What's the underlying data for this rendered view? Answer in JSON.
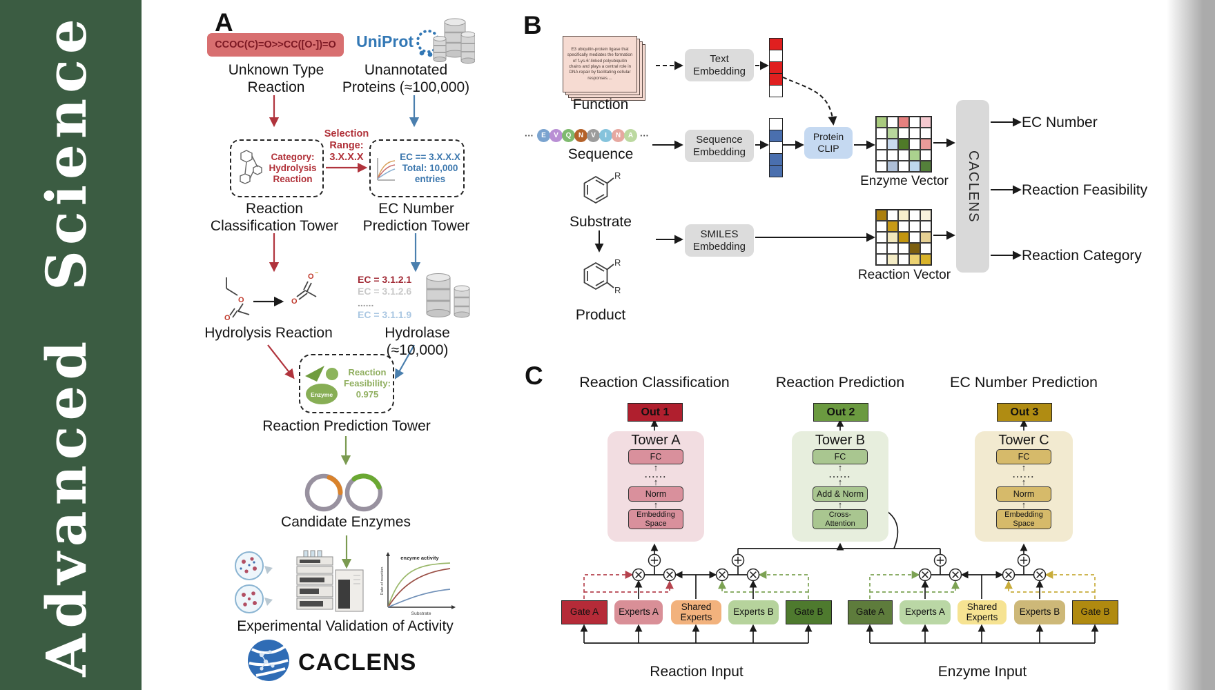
{
  "sidebar": {
    "journal": "Advanced Science",
    "bg": "#3b5c42"
  },
  "panel_a": {
    "label": "A",
    "smiles": "CCOC(C)=O>>CC([O-])=O",
    "smiles_bg": "#d86f70",
    "uniprot": "UniProt",
    "unknown_reaction": "Unknown Type\nReaction",
    "unannotated": "Unannotated\nProteins (≈100,000)",
    "selection": "Selection\nRange:\n3.X.X.X",
    "category_box": "Category:\nHydrolysis\nReaction",
    "ec_box": "EC == 3.X.X.X\nTotal: 10,000\nentries",
    "tower_left": "Reaction\nClassification Tower",
    "tower_right": "EC Number\nPrediction Tower",
    "ec_list": [
      {
        "text": "EC = 3.1.2.1",
        "color": "#a12a35"
      },
      {
        "text": "EC = 3.1.2.6",
        "color": "#c9c9c9"
      },
      {
        "text": "......",
        "color": "#9a9a9a"
      },
      {
        "text": "EC = 3.1.1.9",
        "color": "#aac7e2"
      }
    ],
    "hydrolysis": "Hydrolysis Reaction",
    "hydrolase": "Hydrolase (≈10,000)",
    "enzyme_label": "Enzyme",
    "feasibility": "Reaction\nFeasibility:\n0.975",
    "tower_mid": "Reaction Prediction Tower",
    "candidates": "Candidate Enzymes",
    "graph": {
      "title": "enzyme activity",
      "ylabel": "Rate of reaction",
      "xlabel": "Substrate"
    },
    "validation": "Experimental Validation of Activity",
    "logo": "CACLENS"
  },
  "panel_b": {
    "label": "B",
    "function_card": "E3 ubiquitin-protein ligase that specifically mediates the formation of 'Lys-6'-linked polyubiquitin chains and plays a central role in DNA repair by facilitating cellular responses....",
    "function": "Function",
    "ellipsis": "···",
    "sequence_letters": [
      {
        "ch": "E",
        "color": "#7aa3cf"
      },
      {
        "ch": "V",
        "color": "#b98fd4"
      },
      {
        "ch": "Q",
        "color": "#7fba6f"
      },
      {
        "ch": "N",
        "color": "#b4622a"
      },
      {
        "ch": "V",
        "color": "#9c9c9c"
      },
      {
        "ch": "I",
        "color": "#85c3dc"
      },
      {
        "ch": "N",
        "color": "#e6a8a0"
      },
      {
        "ch": "A",
        "color": "#bcd9a0"
      }
    ],
    "sequence": "Sequence",
    "substrate": "Substrate",
    "product": "Product",
    "text_embedding": "Text\nEmbedding",
    "sequence_embedding": "Sequence\nEmbedding",
    "smiles_embedding": "SMILES\nEmbedding",
    "protein_clip": "Protein\nCLIP",
    "protein_clip_bg": "#c5d9f1",
    "embed_box_bg": "#dcdcdc",
    "text_vector": [
      "#e01f1f",
      "#ffffff",
      "#e01f1f",
      "#e01f1f",
      "#ffffff"
    ],
    "sequence_vector": [
      "#ffffff",
      "#4a6fae",
      "#ffffff",
      "#4a6fae",
      "#4a6fae"
    ],
    "enzyme_vector_label": "Enzyme Vector",
    "reaction_vector_label": "Reaction Vector",
    "enzyme_matrix": [
      "#a9cb7e",
      "#ffffff",
      "#e5807f",
      "#ffffff",
      "#f4c9cf",
      "#ffffff",
      "#b8d79c",
      "#ffffff",
      "#ffffff",
      "#ffffff",
      "#ffffff",
      "#c8daef",
      "#4f7a28",
      "#ffffff",
      "#eb9b99",
      "#ffffff",
      "#ffffff",
      "#ffffff",
      "#abd28e",
      "#ffffff",
      "#ffffff",
      "#aebfd6",
      "#ffffff",
      "#bed7ee",
      "#54803a"
    ],
    "reaction_matrix": [
      "#ab7f0e",
      "#ffffff",
      "#f6eecb",
      "#ffffff",
      "#f8f2dd",
      "#ffffff",
      "#c79a16",
      "#ffffff",
      "#ffffff",
      "#ffffff",
      "#ffffff",
      "#f1e7bd",
      "#c2950f",
      "#ffffff",
      "#e5d093",
      "#ffffff",
      "#ffffff",
      "#ffffff",
      "#7c5f10",
      "#ffffff",
      "#ffffff",
      "#f4ecc6",
      "#ffffff",
      "#ecd271",
      "#d9b32a"
    ],
    "caclens_bar": "CACLENS",
    "caclens_bar_bg": "#d9d9d9",
    "outputs": [
      "EC Number",
      "Reaction Feasibility",
      "Reaction Category"
    ]
  },
  "panel_c": {
    "label": "C",
    "towers": [
      {
        "header": "Reaction Classification",
        "out": "Out 1",
        "out_bg": "#b01f2e",
        "title": "Tower A",
        "fc": "FC",
        "dots": "......",
        "mid": "Norm",
        "bottom": "Embedding\nSpace",
        "bg": "#f2dde1",
        "box_bg": "#d9909c"
      },
      {
        "header": "Reaction Prediction",
        "out": "Out 2",
        "out_bg": "#6b9a40",
        "title": "Tower B",
        "fc": "FC",
        "dots": "......",
        "mid": "Add & Norm",
        "bottom": "Cross-\nAttention",
        "bg": "#e7eedd",
        "box_bg": "#a9c690"
      },
      {
        "header": "EC Number Prediction",
        "out": "Out 3",
        "out_bg": "#b08c12",
        "title": "Tower C",
        "fc": "FC",
        "dots": "......",
        "mid": "Norm",
        "bottom": "Embedding\nSpace",
        "bg": "#f2ead0",
        "box_bg": "#d6ba6a"
      }
    ],
    "modules": [
      {
        "input": "Reaction Input",
        "boxes": [
          {
            "label": "Gate A",
            "bg": "#b52b38"
          },
          {
            "label": "Experts A",
            "bg": "#d98f97"
          },
          {
            "label": "Shared\nExperts",
            "bg": "#f2b27d"
          },
          {
            "label": "Experts B",
            "bg": "#b6d39c"
          },
          {
            "label": "Gate B",
            "bg": "#4e7a2e"
          }
        ]
      },
      {
        "input": "Enzyme Input",
        "boxes": [
          {
            "label": "Gate A",
            "bg": "#5e7c3c"
          },
          {
            "label": "Experts A",
            "bg": "#bad7a5"
          },
          {
            "label": "Shared\nExperts",
            "bg": "#f6e392"
          },
          {
            "label": "Experts B",
            "bg": "#cdb878"
          },
          {
            "label": "Gate B",
            "bg": "#b08a10"
          }
        ]
      }
    ]
  }
}
